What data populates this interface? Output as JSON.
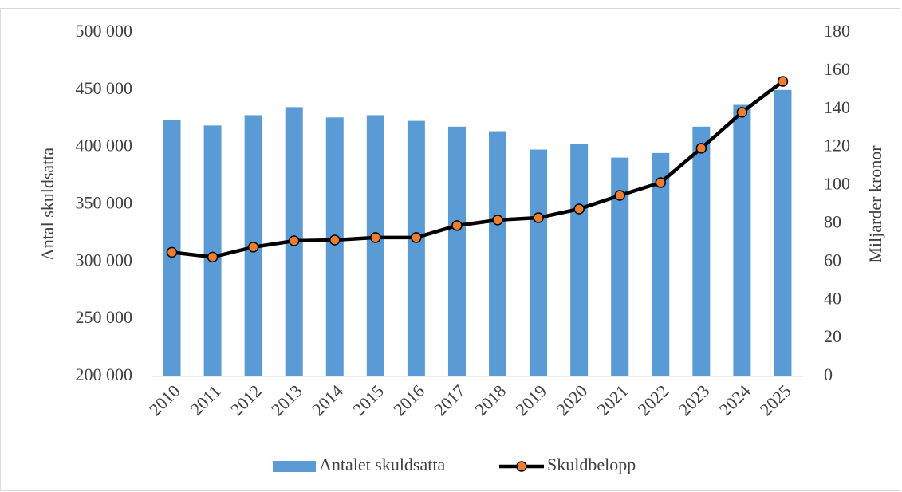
{
  "chart_data": {
    "type": "bar_line",
    "categories": [
      "2010",
      "2011",
      "2012",
      "2013",
      "2014",
      "2015",
      "2016",
      "2017",
      "2018",
      "2019",
      "2020",
      "2021",
      "2022",
      "2023",
      "2024",
      "2025"
    ],
    "series": [
      {
        "name": "Antalet skuldsatta",
        "type": "bar",
        "color": "#5b9bd5",
        "axis": "y",
        "values": [
          424000,
          419000,
          428000,
          435000,
          426000,
          428000,
          423000,
          418000,
          414000,
          398000,
          403000,
          391000,
          395000,
          418000,
          437000,
          450000
        ]
      },
      {
        "name": "Skuldbelopp",
        "type": "line",
        "color": "#000000",
        "marker_color": "#ed7d31",
        "axis": "y2",
        "values": [
          65,
          62.5,
          67.7,
          71,
          71.4,
          72.7,
          72.7,
          79,
          81.9,
          83.1,
          87.7,
          94.8,
          101.5,
          119.5,
          138.3,
          154.5
        ]
      }
    ],
    "ylabel": "Antal skuldsatta",
    "y2label": "Miljarder kronor",
    "ylim": [
      200000,
      500000
    ],
    "yticks": [
      {
        "value": 200000,
        "label": "200 000"
      },
      {
        "value": 250000,
        "label": "250 000"
      },
      {
        "value": 300000,
        "label": "300 000"
      },
      {
        "value": 350000,
        "label": "350 000"
      },
      {
        "value": 400000,
        "label": "400 000"
      },
      {
        "value": 450000,
        "label": "450 000"
      },
      {
        "value": 500000,
        "label": "500 000"
      }
    ],
    "y2lim": [
      0,
      180
    ],
    "y2ticks": [
      0,
      20,
      40,
      60,
      80,
      100,
      120,
      140,
      160,
      180
    ],
    "grid": false,
    "legend": "bottom"
  }
}
